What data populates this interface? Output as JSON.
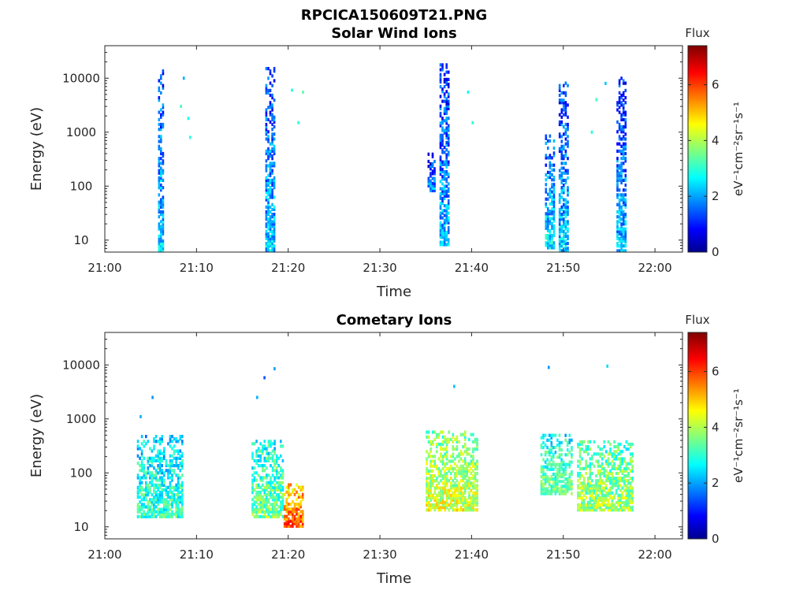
{
  "figure": {
    "title": "RPCICA150609T21.PNG"
  },
  "chart_data": [
    {
      "type": "heatmap",
      "title": "Solar Wind Ions",
      "xlabel": "Time",
      "ylabel": "Energy (eV)",
      "x_ticks": [
        "21:00",
        "21:10",
        "21:20",
        "21:30",
        "21:40",
        "21:50",
        "22:00"
      ],
      "xlim_minutes": [
        0,
        63
      ],
      "y_scale": "log",
      "y_ticks": [
        10,
        100,
        1000,
        10000
      ],
      "y_tick_labels": [
        "10",
        "100",
        "1000",
        "10000"
      ],
      "ylim": [
        6,
        40000
      ],
      "colorbar": {
        "label_top": "Flux",
        "units": "eV⁻¹cm⁻²sr⁻¹s⁻¹",
        "range": [
          0,
          7.4
        ],
        "ticks": [
          0,
          2,
          4,
          6
        ],
        "colormap": "jet"
      },
      "bursts": [
        {
          "t": [
            5.8,
            6.4
          ],
          "e": [
            5,
            14000
          ],
          "flux": 2.5
        },
        {
          "t": [
            17.5,
            18.5
          ],
          "e": [
            5,
            15000
          ],
          "flux": 2.4
        },
        {
          "t": [
            35.2,
            36.0
          ],
          "e": [
            80,
            400
          ],
          "flux": 2.0
        },
        {
          "t": [
            36.5,
            37.5
          ],
          "e": [
            8,
            18000
          ],
          "flux": 2.3
        },
        {
          "t": [
            48.0,
            49.0
          ],
          "e": [
            7,
            1000
          ],
          "flux": 2.6
        },
        {
          "t": [
            49.5,
            50.5
          ],
          "e": [
            5,
            9000
          ],
          "flux": 2.4
        },
        {
          "t": [
            55.8,
            56.8
          ],
          "e": [
            5,
            10000
          ],
          "flux": 2.3
        }
      ],
      "scattered_points": [
        {
          "t": 8.2,
          "e": 3000,
          "flux": 3.2
        },
        {
          "t": 8.5,
          "e": 10000,
          "flux": 2.2
        },
        {
          "t": 9.0,
          "e": 1800,
          "flux": 2.9
        },
        {
          "t": 9.2,
          "e": 800,
          "flux": 3.0
        },
        {
          "t": 20.3,
          "e": 6000,
          "flux": 3.0
        },
        {
          "t": 21.0,
          "e": 1500,
          "flux": 3.1
        },
        {
          "t": 21.5,
          "e": 5500,
          "flux": 3.4
        },
        {
          "t": 39.5,
          "e": 5500,
          "flux": 2.9
        },
        {
          "t": 40.0,
          "e": 1500,
          "flux": 3.1
        },
        {
          "t": 53.0,
          "e": 1000,
          "flux": 3.0
        },
        {
          "t": 53.5,
          "e": 4000,
          "flux": 3.2
        },
        {
          "t": 54.5,
          "e": 8000,
          "flux": 2.4
        }
      ]
    },
    {
      "type": "heatmap",
      "title": "Cometary Ions",
      "xlabel": "Time",
      "ylabel": "Energy (eV)",
      "x_ticks": [
        "21:00",
        "21:10",
        "21:20",
        "21:30",
        "21:40",
        "21:50",
        "22:00"
      ],
      "xlim_minutes": [
        0,
        63
      ],
      "y_scale": "log",
      "y_ticks": [
        10,
        100,
        1000,
        10000
      ],
      "y_tick_labels": [
        "10",
        "100",
        "1000",
        "10000"
      ],
      "ylim": [
        6,
        40000
      ],
      "colorbar": {
        "label_top": "Flux",
        "units": "eV⁻¹cm⁻²sr⁻¹s⁻¹",
        "range": [
          0,
          7.4
        ],
        "ticks": [
          0,
          2,
          4,
          6
        ],
        "colormap": "jet"
      },
      "bursts": [
        {
          "t": [
            3.5,
            8.5
          ],
          "e": [
            15,
            500
          ],
          "flux": 3.2
        },
        {
          "t": [
            16.0,
            19.5
          ],
          "e": [
            15,
            400
          ],
          "flux": 3.6
        },
        {
          "t": [
            19.5,
            21.5
          ],
          "e": [
            10,
            60
          ],
          "flux": 5.8
        },
        {
          "t": [
            35.0,
            40.5
          ],
          "e": [
            20,
            600
          ],
          "flux": 4.4
        },
        {
          "t": [
            47.5,
            51.0
          ],
          "e": [
            40,
            500
          ],
          "flux": 3.6
        },
        {
          "t": [
            51.5,
            57.5
          ],
          "e": [
            20,
            400
          ],
          "flux": 4.0
        }
      ],
      "scattered_points": [
        {
          "t": 3.8,
          "e": 1100,
          "flux": 2.2
        },
        {
          "t": 5.1,
          "e": 2500,
          "flux": 2.0
        },
        {
          "t": 16.5,
          "e": 2500,
          "flux": 2.2
        },
        {
          "t": 17.3,
          "e": 5800,
          "flux": 1.5
        },
        {
          "t": 18.4,
          "e": 8500,
          "flux": 2.1
        },
        {
          "t": 38.0,
          "e": 4000,
          "flux": 2.3
        },
        {
          "t": 48.3,
          "e": 9000,
          "flux": 2.0
        },
        {
          "t": 54.7,
          "e": 9500,
          "flux": 2.5
        }
      ]
    }
  ]
}
